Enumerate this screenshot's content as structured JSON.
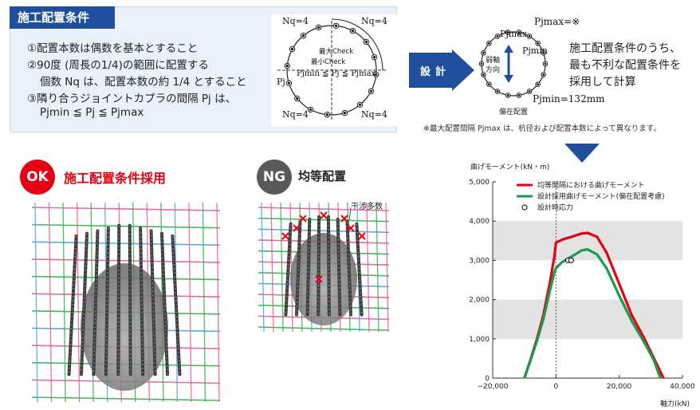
{
  "conditions": {
    "title": "施工配置条件",
    "items": [
      "①配置本数は偶数を基本とすること",
      "②90度 (周長の1/4)の範囲に配置する",
      "個数 Nq は、配置本数の約 1/4 とすること",
      "③隣り合うジョイントカプラの間隔 Pj は、",
      "Pjmin ≦ Pj ≦ Pjmax"
    ]
  },
  "left_diagram": {
    "nq_top_left": "Nq=4",
    "nq_top_right": "Nq=4",
    "nq_bottom_left": "Nq=4",
    "nq_bottom_right": "Nq=4",
    "max_check": "最大Check",
    "min_check": "最小Check",
    "pj": "Pj",
    "inequality": "Pjmin ≦ Pj ≦ Pjmax"
  },
  "design_arrow": {
    "label": "設計"
  },
  "right_diagram": {
    "pjmax_eq": "Pjmax=※",
    "pjmax": "Pjmax",
    "pjmin": "Pjmin",
    "weak_axis": [
      "弱軸",
      "方向"
    ],
    "eccentric": "偏在配置",
    "pjmin_value": "Pjmin=132mm"
  },
  "description": [
    "施工配置条件のうち、",
    "最も不利な配置条件を",
    "採用して計算"
  ],
  "note": "※最大配置間隔 Pjmax は、杭径および配置本数によって異なります。",
  "ok_panel": {
    "badge": "OK",
    "title": "施工配置条件採用"
  },
  "ng_panel": {
    "badge": "NG",
    "title": "均等配置",
    "interference": "干渉多数"
  },
  "colors": {
    "navy": "#1f4e9c",
    "ok_red": "#e60012",
    "ng_gray": "#595959",
    "curve_red": "#e60012",
    "curve_green": "#1a9a4a"
  },
  "chart_data": {
    "type": "line",
    "ylabel": "曲げモーメント(kN・m)",
    "xlabel": "軸力(kN)",
    "xlim": [
      -20000,
      40000
    ],
    "ylim": [
      0,
      5000
    ],
    "x_ticks": [
      "−20,000",
      "0",
      "20,000",
      "40,000"
    ],
    "y_ticks": [
      "0",
      "1,000",
      "2,000",
      "3,000",
      "4,000",
      "5,000"
    ],
    "series": [
      {
        "name": "均等間隔における曲げモーメント",
        "color": "#e60012",
        "points": [
          [
            -10000,
            0
          ],
          [
            -8000,
            480
          ],
          [
            -6000,
            1000
          ],
          [
            -4000,
            1600
          ],
          [
            -2000,
            2400
          ],
          [
            -500,
            3100
          ],
          [
            0,
            3450
          ],
          [
            2000,
            3530
          ],
          [
            5000,
            3600
          ],
          [
            8000,
            3680
          ],
          [
            10000,
            3700
          ],
          [
            13000,
            3600
          ],
          [
            16000,
            3200
          ],
          [
            20000,
            2400
          ],
          [
            24000,
            1600
          ],
          [
            28000,
            1000
          ],
          [
            31000,
            500
          ],
          [
            34000,
            0
          ]
        ]
      },
      {
        "name": "設計採用曲げモーメント(偏在配置考慮)",
        "color": "#1a9a4a",
        "points": [
          [
            -10000,
            0
          ],
          [
            -8000,
            460
          ],
          [
            -6000,
            950
          ],
          [
            -4000,
            1500
          ],
          [
            -2000,
            2200
          ],
          [
            -500,
            2700
          ],
          [
            0,
            2800
          ],
          [
            2000,
            2960
          ],
          [
            5000,
            3100
          ],
          [
            8000,
            3250
          ],
          [
            10000,
            3280
          ],
          [
            13000,
            3150
          ],
          [
            16000,
            2800
          ],
          [
            20000,
            2100
          ],
          [
            24000,
            1450
          ],
          [
            28000,
            900
          ],
          [
            31000,
            450
          ],
          [
            33000,
            0
          ]
        ]
      }
    ],
    "markers": {
      "name": "設計時応力",
      "points": [
        [
          3800,
          3000
        ],
        [
          4800,
          3000
        ]
      ]
    },
    "grid_bands": [
      [
        1000,
        2000
      ],
      [
        3000,
        4000
      ]
    ],
    "vline_x": 0
  }
}
